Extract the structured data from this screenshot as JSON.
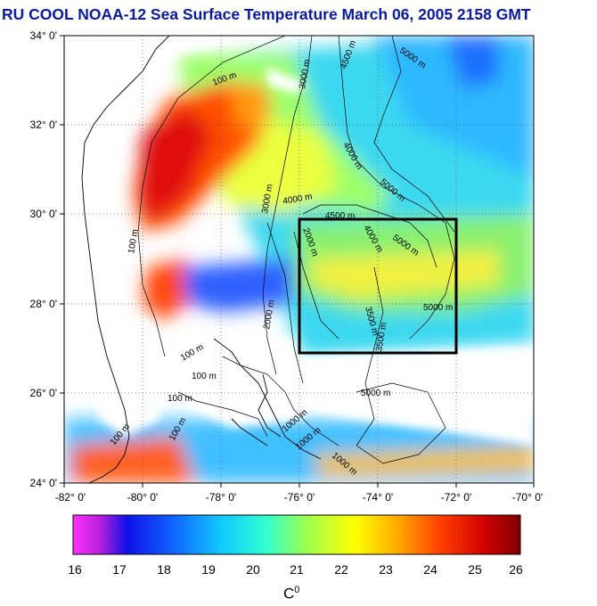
{
  "title": "RU COOL  NOAA-12 Sea Surface Temperature March 06, 2005 2158 GMT",
  "map": {
    "lat_range": [
      24,
      34
    ],
    "lon_range": [
      -82,
      -70
    ],
    "lat_ticks": [
      "34° 0'",
      "32° 0'",
      "30° 0'",
      "28° 0'",
      "26° 0'",
      "24° 0'"
    ],
    "lon_ticks": [
      "-82° 0'",
      "-80° 0'",
      "-78° 0'",
      "-76° 0'",
      "-74° 0'",
      "-72° 0'",
      "-70° 0'"
    ],
    "grid": true,
    "study_box": {
      "lon": [
        -76,
        -72
      ],
      "lat": [
        27,
        30
      ]
    },
    "contour_labels": [
      "100 m",
      "100 m",
      "100 m",
      "100 m",
      "100 m",
      "100 m",
      "100 m",
      "3000 m",
      "3000 m",
      "4000 m",
      "4000 m",
      "4000 m",
      "5000 m",
      "5000 m",
      "5000 m",
      "5000 m",
      "5000 m",
      "4500 m",
      "4500 m",
      "3500 m",
      "3500 m",
      "2000 m",
      "2000 m",
      "1000 m",
      "1000 m",
      "1000 m"
    ]
  },
  "colorbar": {
    "ticks": [
      "16",
      "17",
      "18",
      "19",
      "20",
      "21",
      "22",
      "23",
      "24",
      "25",
      "26"
    ],
    "unit_base": "C",
    "unit_sup": "0"
  }
}
